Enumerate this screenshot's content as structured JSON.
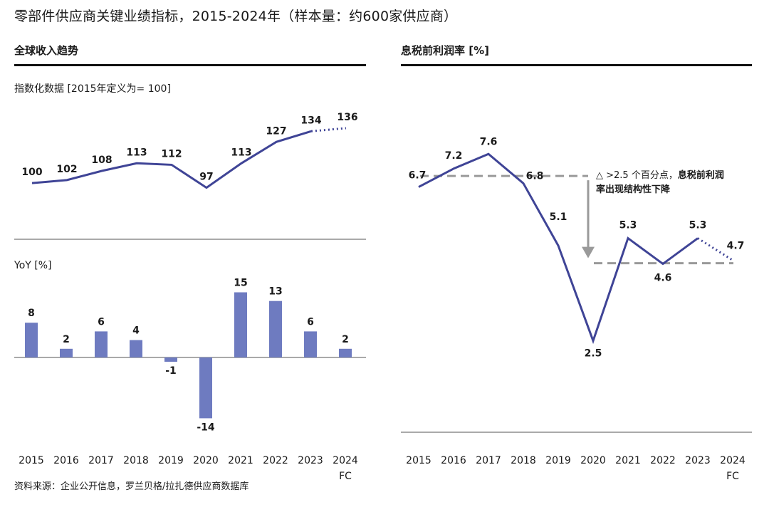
{
  "title": "零部件供应商关键业绩指标，2015-2024年（样本量：约600家供应商）",
  "left_panel_title": "全球收入趋势",
  "right_panel_title": "息税前利润率 [%]",
  "index_label": "指数化数据 [2015年定义为= 100]",
  "yoy_label": "YoY [%]",
  "annotation": {
    "prefix": "△ >2.5 个百分点，",
    "bold": "息税前利润",
    "line2": "率出现结构性下降"
  },
  "source": "资料来源：企业公开信息，罗兰贝格/拉扎德供应商数据库",
  "colors": {
    "series": "#3f4496",
    "bar": "#6e7bc0",
    "ref_line": "#9a9a9a",
    "arrow": "#9a9a9a"
  },
  "chart_data": [
    {
      "type": "line",
      "name": "global-revenue-index",
      "x": [
        "2015",
        "2016",
        "2017",
        "2018",
        "2019",
        "2020",
        "2021",
        "2022",
        "2023",
        "2024"
      ],
      "x_sublabels": [
        "",
        "",
        "",
        "",
        "",
        "",
        "",
        "",
        "",
        "FC"
      ],
      "values": [
        100,
        102,
        108,
        113,
        112,
        97,
        113,
        127,
        134,
        136
      ],
      "forecast_from_index": 8,
      "ylim": [
        80,
        150
      ]
    },
    {
      "type": "bar",
      "name": "yoy-growth",
      "categories": [
        "2015",
        "2016",
        "2017",
        "2018",
        "2019",
        "2020",
        "2021",
        "2022",
        "2023",
        "2024"
      ],
      "category_sublabels": [
        "",
        "",
        "",
        "",
        "",
        "",
        "",
        "",
        "",
        "FC"
      ],
      "values": [
        8,
        2,
        6,
        4,
        -1,
        -14,
        15,
        13,
        6,
        2
      ],
      "ylim": [
        -15,
        16
      ]
    },
    {
      "type": "line",
      "name": "ebit-margin",
      "x": [
        "2015",
        "2016",
        "2017",
        "2018",
        "2019",
        "2020",
        "2021",
        "2022",
        "2023",
        "2024"
      ],
      "x_sublabels": [
        "",
        "",
        "",
        "",
        "",
        "",
        "",
        "",
        "",
        "FC"
      ],
      "values": [
        6.7,
        7.2,
        7.6,
        6.8,
        5.1,
        2.5,
        5.3,
        4.6,
        5.3,
        4.7
      ],
      "forecast_from_index": 8,
      "reference_levels": [
        7.0,
        4.6
      ],
      "ylim": [
        1.5,
        8.5
      ]
    }
  ]
}
